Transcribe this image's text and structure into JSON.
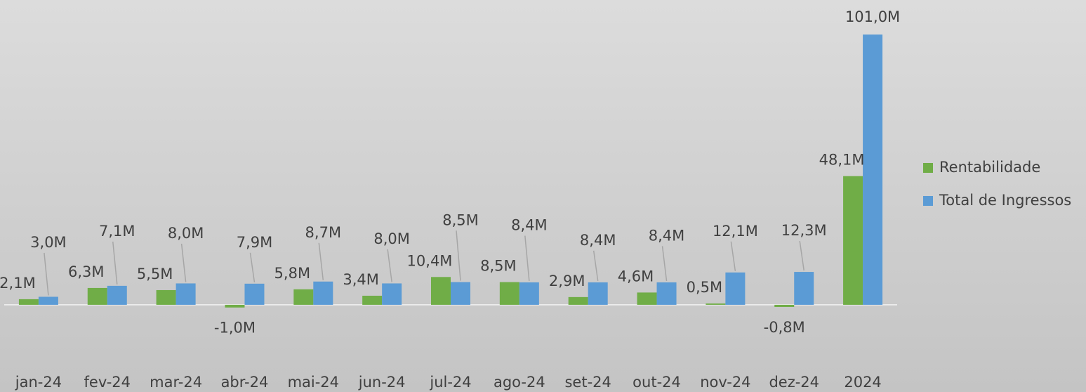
{
  "chart_data": {
    "type": "bar",
    "categories": [
      "jan-24",
      "fev-24",
      "mar-24",
      "abr-24",
      "mai-24",
      "jun-24",
      "jul-24",
      "ago-24",
      "set-24",
      "out-24",
      "nov-24",
      "dez-24",
      "2024"
    ],
    "series": [
      {
        "name": "Rentabilidade",
        "color": "#70ad47",
        "values": [
          2.1,
          6.3,
          5.5,
          -1.0,
          5.8,
          3.4,
          10.4,
          8.5,
          2.9,
          4.6,
          0.5,
          -0.8,
          48.1
        ],
        "value_labels": [
          "2,1M",
          "6,3M",
          "5,5M",
          "-1,0M",
          "5,8M",
          "3,4M",
          "10,4M",
          "8,5M",
          "2,9M",
          "4,6M",
          "0,5M",
          "-0,8M",
          "48,1M"
        ]
      },
      {
        "name": "Total de Ingressos",
        "color": "#5b9bd5",
        "values": [
          3.0,
          7.1,
          8.0,
          7.9,
          8.7,
          8.0,
          8.5,
          8.4,
          8.4,
          8.4,
          12.1,
          12.3,
          101.0
        ],
        "value_labels": [
          "3,0M",
          "7,1M",
          "8,0M",
          "7,9M",
          "8,7M",
          "8,0M",
          "8,5M",
          "8,4M",
          "8,4M",
          "8,4M",
          "12,1M",
          "12,3M",
          "101,0M"
        ]
      }
    ],
    "ylim": [
      -10,
      105
    ],
    "legend": "right"
  }
}
